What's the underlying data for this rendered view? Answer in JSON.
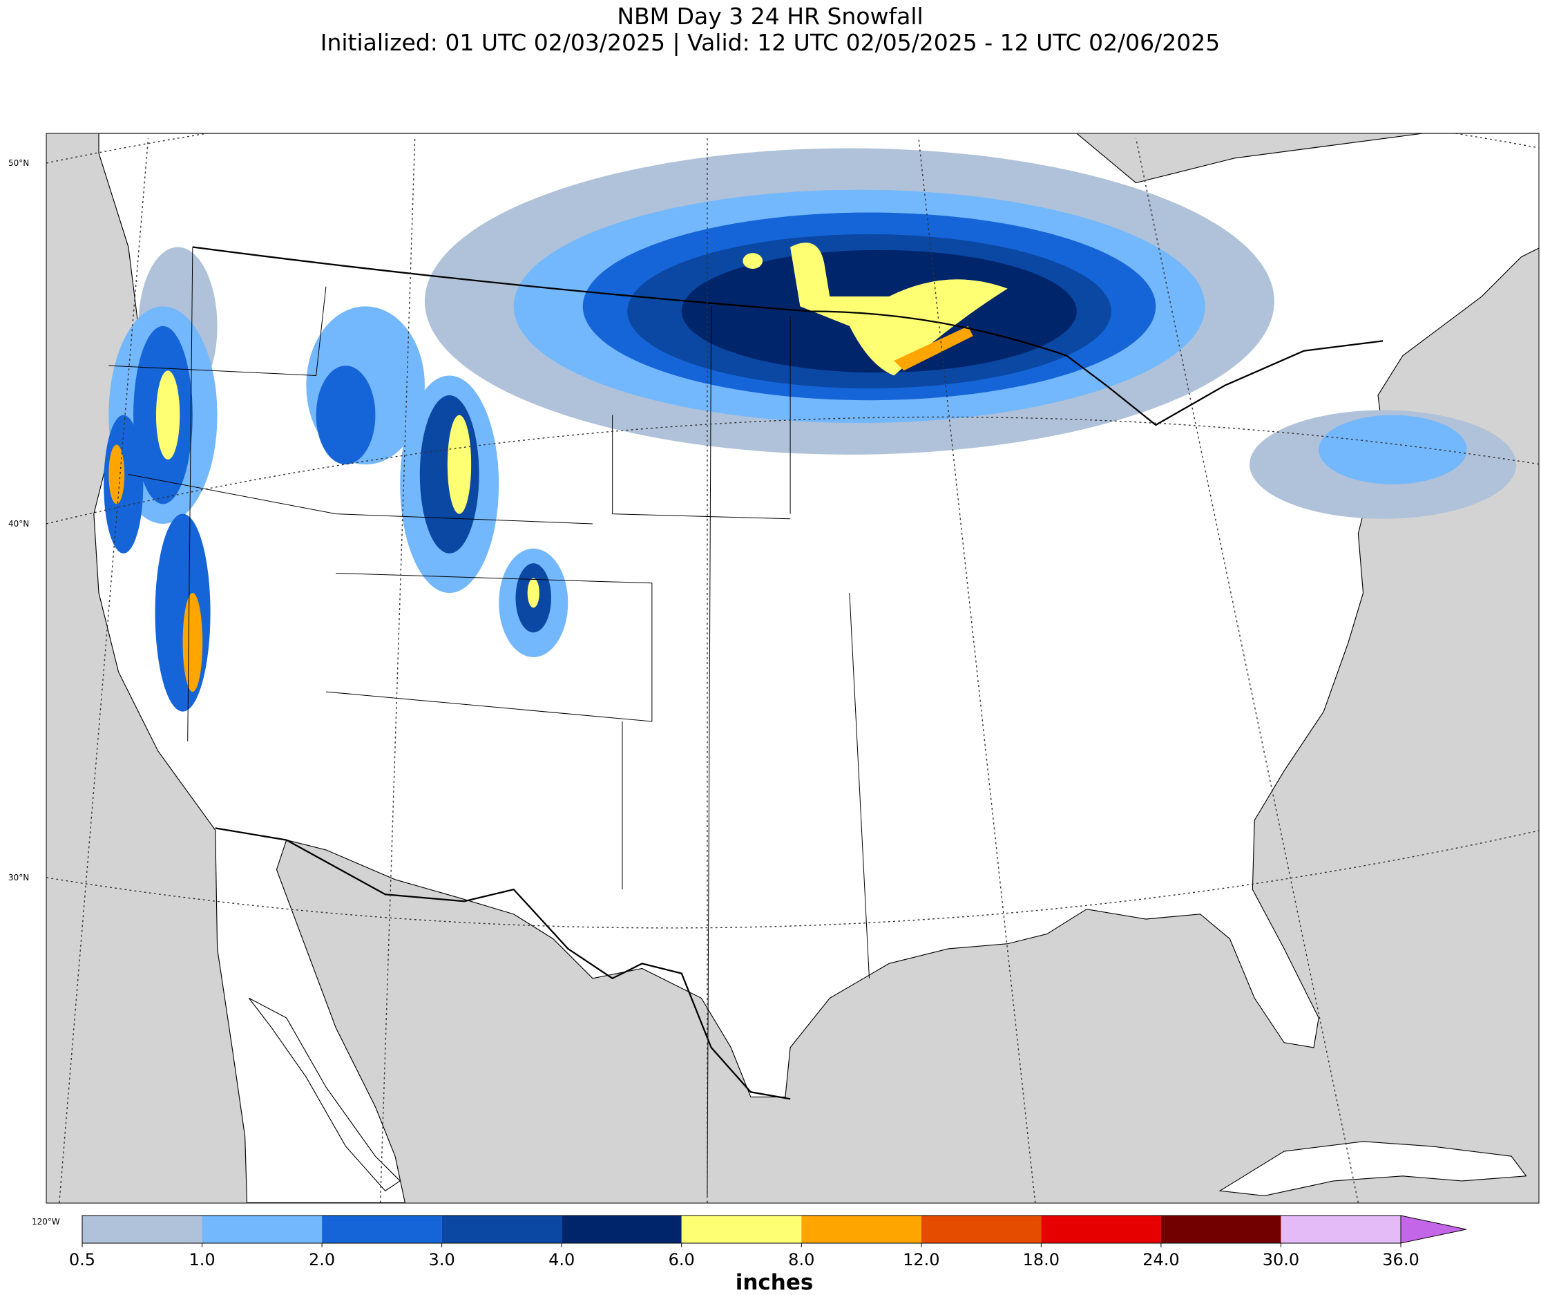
{
  "header": {
    "title": "NBM Day 3 24 HR Snowfall",
    "subtitle": "Initialized: 01 UTC 02/03/2025 | Valid: 12 UTC 02/05/2025 - 12 UTC 02/06/2025"
  },
  "map": {
    "lat_labels": [
      "50°N",
      "40°N",
      "30°N"
    ],
    "lon_labels": [
      "120°W"
    ]
  },
  "colorbar": {
    "label": "inches",
    "boundaries": [
      {
        "value": 0.5,
        "label": "0.5"
      },
      {
        "value": 1,
        "label": "1.0"
      },
      {
        "value": 2,
        "label": "2.0"
      },
      {
        "value": 3,
        "label": "3.0"
      },
      {
        "value": 4,
        "label": "4.0"
      },
      {
        "value": 6,
        "label": "6.0"
      },
      {
        "value": 8,
        "label": "8.0"
      },
      {
        "value": 12,
        "label": "12.0"
      },
      {
        "value": 18,
        "label": "18.0"
      },
      {
        "value": 24,
        "label": "24.0"
      },
      {
        "value": 30,
        "label": "30.0"
      },
      {
        "value": 36,
        "label": "36.0"
      }
    ],
    "colors": [
      "#afc2d9",
      "#73b7fc",
      "#1565d8",
      "#0a48a3",
      "#00256b",
      "#ffff73",
      "#ffa500",
      "#e64c00",
      "#e60000",
      "#730000",
      "#e5bbf7"
    ],
    "extend_color": "#c466e8"
  }
}
